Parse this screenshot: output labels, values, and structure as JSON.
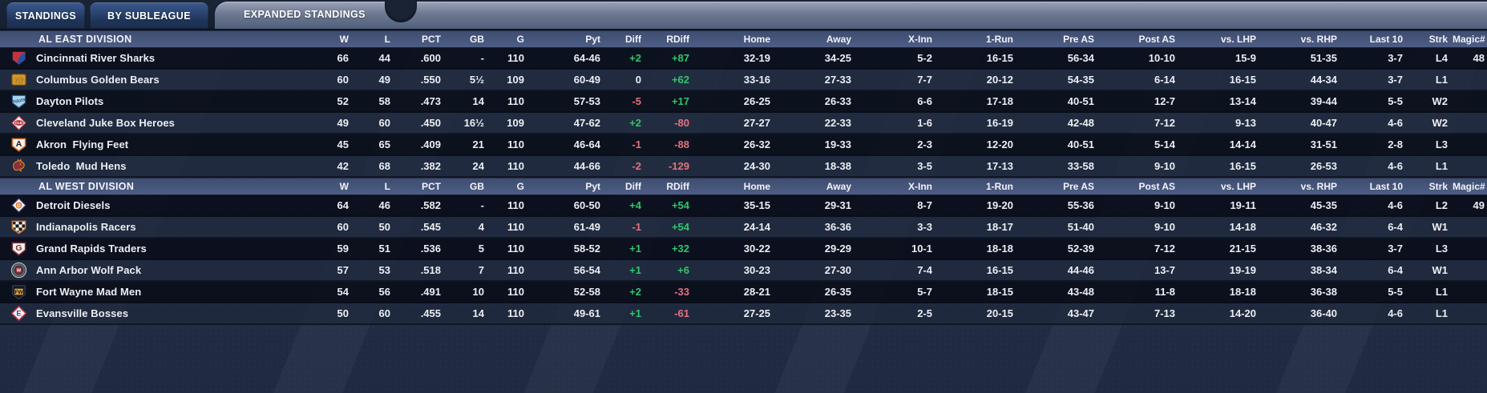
{
  "tabs": [
    {
      "label": "STANDINGS",
      "active": false
    },
    {
      "label": "BY SUBLEAGUE",
      "active": false
    },
    {
      "label": "EXPANDED STANDINGS",
      "active": true
    }
  ],
  "colors": {
    "positive": "#31c56d",
    "negative": "#e4737d",
    "division_header": "#4d5d85",
    "row_dark": "#0a0f1d",
    "row_light": "#1f293c",
    "tab_inactive": "#24406f",
    "tab_active_band": "#6d7992",
    "text": "#eceef3"
  },
  "columns": [
    "W",
    "L",
    "PCT",
    "GB",
    "G",
    "Pyt",
    "Diff",
    "RDiff",
    "Home",
    "Away",
    "X-Inn",
    "1-Run",
    "Pre AS",
    "Post AS",
    "vs. LHP",
    "vs. RHP",
    "Last 10",
    "Strk",
    "Magic#"
  ],
  "divisions": [
    {
      "label": "AL EAST DIVISION",
      "teams": [
        {
          "name": "Cincinnati River Sharks",
          "logo": {
            "type": "shield-fin",
            "colors": [
              "#c5333c",
              "#2d4f9e"
            ],
            "text": ""
          },
          "stats": [
            "66",
            "44",
            ".600",
            "-",
            "110",
            "64-46",
            "+2",
            "+87",
            "32-19",
            "34-25",
            "5-2",
            "16-15",
            "56-34",
            "10-10",
            "15-9",
            "51-35",
            "3-7",
            "L4",
            "48"
          ]
        },
        {
          "name": "Columbus Golden Bears",
          "logo": {
            "type": "letters-box",
            "colors": [
              "#d8992b",
              "#7c5212"
            ],
            "text": "GB"
          },
          "stats": [
            "60",
            "49",
            ".550",
            "5½",
            "109",
            "60-49",
            "0",
            "+62",
            "33-16",
            "27-33",
            "7-7",
            "20-12",
            "54-35",
            "6-14",
            "16-15",
            "44-34",
            "3-7",
            "L1",
            ""
          ]
        },
        {
          "name": "Dayton Pilots",
          "logo": {
            "type": "plate-script",
            "colors": [
              "#a6d4e8",
              "#2c5380"
            ],
            "text": "Pilots"
          },
          "stats": [
            "52",
            "58",
            ".473",
            "14",
            "110",
            "57-53",
            "-5",
            "+17",
            "26-25",
            "26-33",
            "6-6",
            "17-18",
            "40-51",
            "12-7",
            "13-14",
            "39-44",
            "5-5",
            "W2",
            ""
          ]
        },
        {
          "name": "Cleveland Juke Box Heroes",
          "logo": {
            "type": "diamond-oval",
            "colors": [
              "#f3ece6",
              "#b43040"
            ],
            "text": "CLE"
          },
          "stats": [
            "49",
            "60",
            ".450",
            "16½",
            "109",
            "47-62",
            "+2",
            "-80",
            "27-27",
            "22-33",
            "1-6",
            "16-19",
            "42-48",
            "7-12",
            "9-13",
            "40-47",
            "4-6",
            "W2",
            ""
          ]
        },
        {
          "name": "Akron  Flying Feet",
          "logo": {
            "type": "plate-letter",
            "colors": [
              "#f7f3ec",
              "#d96a28",
              "#1a1a1a"
            ],
            "text": "A"
          },
          "stats": [
            "45",
            "65",
            ".409",
            "21",
            "110",
            "46-64",
            "-1",
            "-88",
            "26-32",
            "19-33",
            "2-3",
            "12-20",
            "40-51",
            "5-14",
            "14-14",
            "31-51",
            "2-8",
            "L3",
            ""
          ]
        },
        {
          "name": "Toledo  Mud Hens",
          "logo": {
            "type": "hen",
            "colors": [
              "#8c2f36",
              "#cf9a30"
            ],
            "text": ""
          },
          "stats": [
            "42",
            "68",
            ".382",
            "24",
            "110",
            "44-66",
            "-2",
            "-129",
            "24-30",
            "18-38",
            "3-5",
            "17-13",
            "33-58",
            "9-10",
            "16-15",
            "26-53",
            "4-6",
            "L1",
            ""
          ]
        }
      ]
    },
    {
      "label": "AL WEST DIVISION",
      "teams": [
        {
          "name": "Detroit Diesels",
          "logo": {
            "type": "diamond-circle",
            "colors": [
              "#2b3b66",
              "#e0762c"
            ],
            "text": "D"
          },
          "stats": [
            "64",
            "46",
            ".582",
            "-",
            "110",
            "60-50",
            "+4",
            "+54",
            "35-15",
            "29-31",
            "8-7",
            "19-20",
            "55-36",
            "9-10",
            "19-11",
            "45-35",
            "4-6",
            "L2",
            "49"
          ]
        },
        {
          "name": "Indianapolis Racers",
          "logo": {
            "type": "plate-checker",
            "colors": [
              "#f5f2ec",
              "#d97b2e",
              "#17181c"
            ],
            "text": ""
          },
          "stats": [
            "60",
            "50",
            ".545",
            "4",
            "110",
            "61-49",
            "-1",
            "+54",
            "24-14",
            "36-36",
            "3-3",
            "18-17",
            "51-40",
            "9-10",
            "14-18",
            "46-32",
            "6-4",
            "W1",
            ""
          ]
        },
        {
          "name": "Grand Rapids Traders",
          "logo": {
            "type": "plate-letter",
            "colors": [
              "#f6f1ec",
              "#7b2d3c",
              "#7b2d3c"
            ],
            "text": "G"
          },
          "stats": [
            "59",
            "51",
            ".536",
            "5",
            "110",
            "58-52",
            "+1",
            "+32",
            "30-22",
            "29-29",
            "10-1",
            "18-18",
            "52-39",
            "7-12",
            "21-15",
            "38-36",
            "3-7",
            "L3",
            ""
          ]
        },
        {
          "name": "Ann Arbor Wolf Pack",
          "logo": {
            "type": "circle-badge",
            "colors": [
              "#4d4e55",
              "#b32836"
            ],
            "text": "W"
          },
          "stats": [
            "57",
            "53",
            ".518",
            "7",
            "110",
            "56-54",
            "+1",
            "+6",
            "30-23",
            "27-30",
            "7-4",
            "16-15",
            "44-46",
            "13-7",
            "19-19",
            "38-34",
            "6-4",
            "W1",
            ""
          ]
        },
        {
          "name": "Fort Wayne Mad Men",
          "logo": {
            "type": "shield-box",
            "colors": [
              "#15171f",
              "#d9a43b"
            ],
            "text": "FW"
          },
          "stats": [
            "54",
            "56",
            ".491",
            "10",
            "110",
            "52-58",
            "+2",
            "-33",
            "28-21",
            "26-35",
            "5-7",
            "18-15",
            "43-48",
            "11-8",
            "18-18",
            "36-38",
            "5-5",
            "L1",
            ""
          ]
        },
        {
          "name": "Evansville Bosses",
          "logo": {
            "type": "diamond-letter",
            "colors": [
              "#c23b4e",
              "#2b4fa0"
            ],
            "text": "E"
          },
          "stats": [
            "50",
            "60",
            ".455",
            "14",
            "110",
            "49-61",
            "+1",
            "-61",
            "27-25",
            "23-35",
            "2-5",
            "20-15",
            "43-47",
            "7-13",
            "14-20",
            "36-40",
            "4-6",
            "L1",
            ""
          ]
        }
      ]
    }
  ]
}
